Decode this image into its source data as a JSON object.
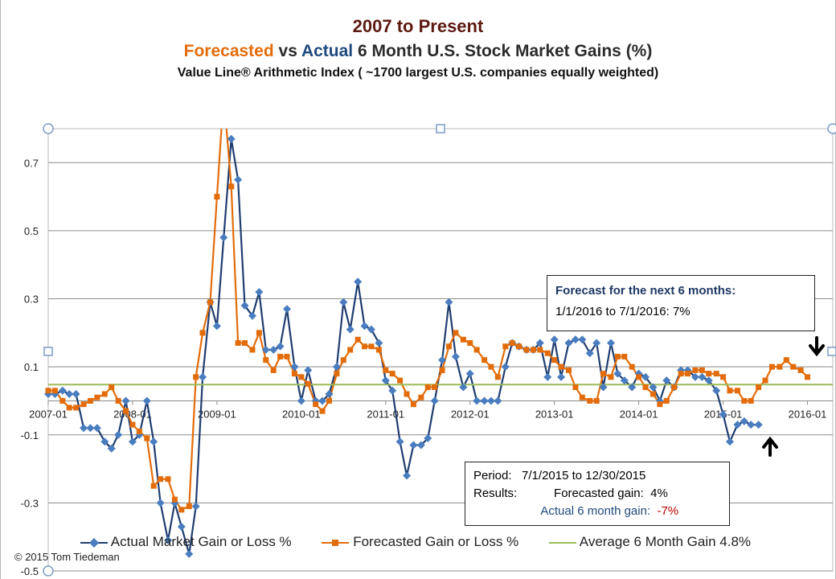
{
  "chart_data": {
    "type": "line",
    "title": "2007 to Present",
    "subtitle": {
      "forecasted_word": "Forecasted",
      "vs": " vs ",
      "actual_word": "Actual",
      "rest": " 6 Month U.S. Stock Market Gains (%)"
    },
    "subtitle2": "Value Line® Arithmetic Index ( ~1700  largest U.S. companies equally weighted)",
    "ylim": [
      -0.5,
      0.8
    ],
    "xlim": [
      2007.0,
      2016.3
    ],
    "y_ticks": [
      "0.7",
      "0.5",
      "0.3",
      "0.1",
      "-0.1",
      "-0.3",
      "-0.5"
    ],
    "y_tick_values": [
      0.7,
      0.5,
      0.3,
      0.1,
      -0.1,
      -0.3,
      -0.5
    ],
    "x_ticks": [
      "2007-01",
      "2008-01",
      "2009-01",
      "2010-01",
      "2011-01",
      "2012-01",
      "2013-01",
      "2014-01",
      "2015-01",
      "2016-01"
    ],
    "x_tick_values": [
      2007,
      2008,
      2009,
      2010,
      2011,
      2012,
      2013,
      2014,
      2015,
      2016
    ],
    "grid": true,
    "legend_position": "bottom",
    "series": [
      {
        "name": "Actual Market Gain or Loss %",
        "color": "#4a7dbf",
        "x": [
          2007.0,
          2007.08,
          2007.17,
          2007.25,
          2007.33,
          2007.42,
          2007.5,
          2007.58,
          2007.67,
          2007.75,
          2007.83,
          2007.92,
          2008.0,
          2008.08,
          2008.17,
          2008.25,
          2008.33,
          2008.42,
          2008.5,
          2008.58,
          2008.67,
          2008.75,
          2008.83,
          2008.92,
          2009.0,
          2009.08,
          2009.17,
          2009.25,
          2009.33,
          2009.42,
          2009.5,
          2009.58,
          2009.67,
          2009.75,
          2009.83,
          2009.92,
          2010.0,
          2010.08,
          2010.17,
          2010.25,
          2010.33,
          2010.42,
          2010.5,
          2010.58,
          2010.67,
          2010.75,
          2010.83,
          2010.92,
          2011.0,
          2011.08,
          2011.17,
          2011.25,
          2011.33,
          2011.42,
          2011.5,
          2011.58,
          2011.67,
          2011.75,
          2011.83,
          2011.92,
          2012.0,
          2012.08,
          2012.17,
          2012.25,
          2012.33,
          2012.42,
          2012.5,
          2012.58,
          2012.67,
          2012.75,
          2012.83,
          2012.92,
          2013.0,
          2013.08,
          2013.17,
          2013.25,
          2013.33,
          2013.42,
          2013.5,
          2013.58,
          2013.67,
          2013.75,
          2013.83,
          2013.92,
          2014.0,
          2014.08,
          2014.17,
          2014.25,
          2014.33,
          2014.42,
          2014.5,
          2014.58,
          2014.67,
          2014.75,
          2014.83,
          2014.92,
          2015.0,
          2015.08,
          2015.17,
          2015.25,
          2015.33,
          2015.42
        ],
        "values": [
          0.02,
          0.02,
          0.03,
          0.02,
          0.02,
          -0.08,
          -0.08,
          -0.08,
          -0.12,
          -0.14,
          -0.1,
          0.0,
          -0.12,
          -0.1,
          0.0,
          -0.12,
          -0.3,
          -0.41,
          -0.3,
          -0.37,
          -0.45,
          -0.31,
          0.07,
          0.29,
          0.22,
          0.48,
          0.77,
          0.65,
          0.28,
          0.25,
          0.32,
          0.15,
          0.15,
          0.16,
          0.27,
          0.1,
          0.0,
          0.09,
          0.0,
          0.0,
          0.02,
          0.1,
          0.29,
          0.21,
          0.35,
          0.22,
          0.21,
          0.17,
          0.06,
          0.03,
          -0.12,
          -0.22,
          -0.13,
          -0.13,
          -0.11,
          -0.0,
          0.12,
          0.29,
          0.13,
          0.04,
          0.08,
          0.0,
          0.0,
          0.0,
          0.0,
          0.1,
          0.17,
          0.16,
          0.15,
          0.15,
          0.17,
          0.07,
          0.18,
          0.07,
          0.17,
          0.18,
          0.18,
          0.14,
          0.17,
          0.04,
          0.17,
          0.08,
          0.06,
          0.04,
          0.08,
          0.07,
          0.04,
          0.0,
          0.06,
          0.04,
          0.09,
          0.09,
          0.07,
          0.07,
          0.06,
          0.03,
          -0.04,
          -0.12,
          -0.07,
          -0.06,
          -0.07,
          -0.07
        ]
      },
      {
        "name": "Forecasted Gain or Loss %",
        "color": "#e36c0a",
        "x": [
          2007.0,
          2007.08,
          2007.17,
          2007.25,
          2007.33,
          2007.42,
          2007.5,
          2007.58,
          2007.67,
          2007.75,
          2007.83,
          2007.92,
          2008.0,
          2008.08,
          2008.17,
          2008.25,
          2008.33,
          2008.42,
          2008.5,
          2008.58,
          2008.67,
          2008.75,
          2008.83,
          2008.92,
          2009.0,
          2009.08,
          2009.17,
          2009.25,
          2009.33,
          2009.42,
          2009.5,
          2009.58,
          2009.67,
          2009.75,
          2009.83,
          2009.92,
          2010.0,
          2010.08,
          2010.17,
          2010.25,
          2010.33,
          2010.42,
          2010.5,
          2010.58,
          2010.67,
          2010.75,
          2010.83,
          2010.92,
          2011.0,
          2011.08,
          2011.17,
          2011.25,
          2011.33,
          2011.42,
          2011.5,
          2011.58,
          2011.67,
          2011.75,
          2011.83,
          2011.92,
          2012.0,
          2012.08,
          2012.17,
          2012.25,
          2012.33,
          2012.42,
          2012.5,
          2012.58,
          2012.67,
          2012.75,
          2012.83,
          2012.92,
          2013.0,
          2013.08,
          2013.17,
          2013.25,
          2013.33,
          2013.42,
          2013.5,
          2013.58,
          2013.67,
          2013.75,
          2013.83,
          2013.92,
          2014.0,
          2014.08,
          2014.17,
          2014.25,
          2014.33,
          2014.42,
          2014.5,
          2014.58,
          2014.67,
          2014.75,
          2014.83,
          2014.92,
          2015.0,
          2015.08,
          2015.17,
          2015.25,
          2015.33,
          2015.42,
          2015.5,
          2015.58,
          2015.67,
          2015.75,
          2015.83,
          2015.92,
          2016.0
        ],
        "values": [
          0.03,
          0.03,
          0.0,
          -0.02,
          -0.02,
          -0.01,
          0.0,
          0.01,
          0.02,
          0.04,
          0.0,
          -0.03,
          -0.07,
          -0.09,
          -0.11,
          -0.25,
          -0.23,
          -0.23,
          -0.29,
          -0.32,
          -0.31,
          0.07,
          0.2,
          0.29,
          0.6,
          0.9,
          0.63,
          0.17,
          0.17,
          0.15,
          0.2,
          0.12,
          0.09,
          0.13,
          0.13,
          0.08,
          0.07,
          0.05,
          -0.01,
          -0.03,
          0.0,
          0.08,
          0.12,
          0.15,
          0.18,
          0.16,
          0.16,
          0.15,
          0.09,
          0.08,
          0.06,
          0.02,
          -0.01,
          0.01,
          0.04,
          0.04,
          0.09,
          0.16,
          0.2,
          0.18,
          0.17,
          0.15,
          0.12,
          0.1,
          0.07,
          0.16,
          0.17,
          0.16,
          0.15,
          0.15,
          0.15,
          0.14,
          0.12,
          0.1,
          0.09,
          0.04,
          0.01,
          0.0,
          0.0,
          0.08,
          0.07,
          0.13,
          0.13,
          0.1,
          0.07,
          0.04,
          0.02,
          -0.01,
          0.0,
          0.04,
          0.08,
          0.08,
          0.09,
          0.09,
          0.08,
          0.08,
          0.07,
          0.03,
          0.03,
          0.0,
          0.0,
          0.04,
          0.06,
          0.1,
          0.1,
          0.12,
          0.1,
          0.09,
          0.07
        ]
      },
      {
        "name": "Average 6 Month Gain 4.8%",
        "color": "#9bbb59",
        "x": [
          2007.0,
          2016.3
        ],
        "values": [
          0.048,
          0.048
        ]
      }
    ]
  },
  "forecast_box": {
    "line1": "Forecast for  the next 6 months:",
    "line2": "1/1/2016  to 7/1/2016:   7%"
  },
  "period_box": {
    "period_label": "Period:",
    "period_value": "7/1/2015  to 12/30/2015",
    "results_label": "Results:",
    "forecast_label": "Forecasted gain:",
    "forecast_value": "4%",
    "actual_label": "Actual 6 month gain:",
    "actual_value": "-7%"
  },
  "legend": {
    "actual": "Actual Market Gain or Loss %",
    "forecast": "Forecasted Gain or Loss %",
    "average": "Average 6 Month Gain 4.8%"
  },
  "copyright": "© 2015 Tom Tiedeman"
}
